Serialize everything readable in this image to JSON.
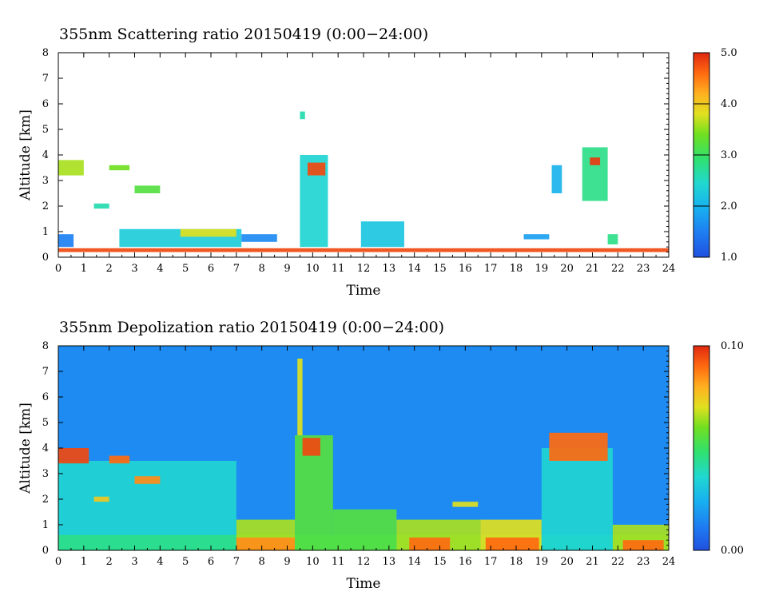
{
  "chart_data": [
    {
      "type": "heatmap",
      "title": "355nm Scattering ratio  20150419 (0:00−24:00)",
      "xlabel": "Time",
      "ylabel": "Altitude [km]",
      "xlim": [
        0,
        24
      ],
      "ylim": [
        0,
        8
      ],
      "x_ticks": [
        "0",
        "1",
        "2",
        "3",
        "4",
        "5",
        "6",
        "7",
        "8",
        "9",
        "10",
        "11",
        "12",
        "13",
        "14",
        "15",
        "16",
        "17",
        "18",
        "19",
        "20",
        "21",
        "22",
        "23",
        "24"
      ],
      "y_ticks": [
        "0",
        "1",
        "2",
        "3",
        "4",
        "5",
        "6",
        "7",
        "8"
      ],
      "colorbar": {
        "range": [
          1.0,
          5.0
        ],
        "tick_labels": [
          "5.0",
          "4.0",
          "3.0",
          "2.0",
          "1.0"
        ],
        "tick_values": [
          5.0,
          4.0,
          3.0,
          2.0,
          1.0
        ]
      },
      "features": [
        {
          "t0": 0,
          "t1": 24,
          "z0": 0.2,
          "z1": 0.35,
          "level": 4.8
        },
        {
          "t0": 0,
          "t1": 0.6,
          "z0": 0.4,
          "z1": 0.9,
          "level": 1.5
        },
        {
          "t0": 2.4,
          "t1": 7.2,
          "z0": 0.4,
          "z1": 1.1,
          "level": 2.3
        },
        {
          "t0": 4.8,
          "t1": 7.0,
          "z0": 0.8,
          "z1": 1.1,
          "level": 3.8
        },
        {
          "t0": 7.2,
          "t1": 8.6,
          "z0": 0.6,
          "z1": 0.9,
          "level": 1.6
        },
        {
          "t0": 9.5,
          "t1": 10.6,
          "z0": 0.4,
          "z1": 4.0,
          "level": 2.4
        },
        {
          "t0": 9.8,
          "t1": 10.5,
          "z0": 3.2,
          "z1": 3.7,
          "level": 4.8
        },
        {
          "t0": 11.9,
          "t1": 13.6,
          "z0": 0.4,
          "z1": 1.4,
          "level": 2.2
        },
        {
          "t0": 0,
          "t1": 1.0,
          "z0": 3.2,
          "z1": 3.8,
          "level": 3.6
        },
        {
          "t0": 2.0,
          "t1": 2.8,
          "z0": 3.4,
          "z1": 3.6,
          "level": 3.4
        },
        {
          "t0": 3.0,
          "t1": 4.0,
          "z0": 2.5,
          "z1": 2.8,
          "level": 3.2
        },
        {
          "t0": 1.4,
          "t1": 2.0,
          "z0": 1.9,
          "z1": 2.1,
          "level": 2.6
        },
        {
          "t0": 19.4,
          "t1": 19.8,
          "z0": 2.5,
          "z1": 3.6,
          "level": 2.0
        },
        {
          "t0": 20.6,
          "t1": 21.6,
          "z0": 2.2,
          "z1": 4.3,
          "level": 2.8
        },
        {
          "t0": 20.9,
          "t1": 21.3,
          "z0": 3.6,
          "z1": 3.9,
          "level": 4.9
        },
        {
          "t0": 18.3,
          "t1": 19.3,
          "z0": 0.7,
          "z1": 0.9,
          "level": 1.8
        },
        {
          "t0": 21.6,
          "t1": 22.0,
          "z0": 0.5,
          "z1": 0.9,
          "level": 2.8
        },
        {
          "t0": 9.5,
          "t1": 9.7,
          "z0": 5.4,
          "z1": 5.7,
          "level": 2.6
        }
      ]
    },
    {
      "type": "heatmap",
      "title": "355nm Depolization ratio  20150419 (0:00−24:00)",
      "xlabel": "Time",
      "ylabel": "Altitude [km]",
      "xlim": [
        0,
        24
      ],
      "ylim": [
        0,
        8
      ],
      "x_ticks": [
        "0",
        "1",
        "2",
        "3",
        "4",
        "5",
        "6",
        "7",
        "8",
        "9",
        "10",
        "11",
        "12",
        "13",
        "14",
        "15",
        "16",
        "17",
        "18",
        "19",
        "20",
        "21",
        "22",
        "23",
        "24"
      ],
      "y_ticks": [
        "0",
        "1",
        "2",
        "3",
        "4",
        "5",
        "6",
        "7",
        "8"
      ],
      "colorbar": {
        "range": [
          0.0,
          0.1
        ],
        "tick_labels": [
          "0.10",
          "0.00"
        ],
        "tick_values": [
          0.1,
          0.0
        ]
      },
      "background_level": 0.015,
      "features": [
        {
          "t0": 0,
          "t1": 7.0,
          "z0": 0,
          "z1": 3.5,
          "level": 0.035
        },
        {
          "t0": 0,
          "t1": 24,
          "z0": 0,
          "z1": 0.6,
          "level": 0.045
        },
        {
          "t0": 7.0,
          "t1": 9.3,
          "z0": 0,
          "z1": 1.2,
          "level": 0.065
        },
        {
          "t0": 7.0,
          "t1": 9.3,
          "z0": 0,
          "z1": 0.5,
          "level": 0.085
        },
        {
          "t0": 9.3,
          "t1": 10.8,
          "z0": 0,
          "z1": 4.5,
          "level": 0.055
        },
        {
          "t0": 9.6,
          "t1": 10.3,
          "z0": 3.7,
          "z1": 4.4,
          "level": 0.095
        },
        {
          "t0": 9.4,
          "t1": 9.6,
          "z0": 4.5,
          "z1": 7.5,
          "level": 0.07
        },
        {
          "t0": 10.8,
          "t1": 13.3,
          "z0": 0,
          "z1": 1.6,
          "level": 0.055
        },
        {
          "t0": 13.3,
          "t1": 16.6,
          "z0": 0,
          "z1": 1.2,
          "level": 0.065
        },
        {
          "t0": 13.8,
          "t1": 15.4,
          "z0": 0,
          "z1": 0.5,
          "level": 0.09
        },
        {
          "t0": 16.6,
          "t1": 19.0,
          "z0": 0,
          "z1": 1.2,
          "level": 0.07
        },
        {
          "t0": 16.8,
          "t1": 18.9,
          "z0": 0,
          "z1": 0.5,
          "level": 0.09
        },
        {
          "t0": 19.0,
          "t1": 21.8,
          "z0": 0,
          "z1": 4.0,
          "level": 0.035
        },
        {
          "t0": 21.8,
          "t1": 24,
          "z0": 0,
          "z1": 1.0,
          "level": 0.065
        },
        {
          "t0": 22.2,
          "t1": 23.8,
          "z0": 0,
          "z1": 0.4,
          "level": 0.09
        },
        {
          "t0": 0,
          "t1": 1.2,
          "z0": 3.4,
          "z1": 4.0,
          "level": 0.095
        },
        {
          "t0": 2.0,
          "t1": 2.8,
          "z0": 3.4,
          "z1": 3.7,
          "level": 0.09
        },
        {
          "t0": 3.0,
          "t1": 4.0,
          "z0": 2.6,
          "z1": 2.9,
          "level": 0.085
        },
        {
          "t0": 19.3,
          "t1": 21.6,
          "z0": 3.5,
          "z1": 4.6,
          "level": 0.09
        },
        {
          "t0": 15.5,
          "t1": 16.5,
          "z0": 1.7,
          "z1": 1.9,
          "level": 0.07
        },
        {
          "t0": 1.4,
          "t1": 2.0,
          "z0": 1.9,
          "z1": 2.1,
          "level": 0.075
        }
      ]
    }
  ]
}
